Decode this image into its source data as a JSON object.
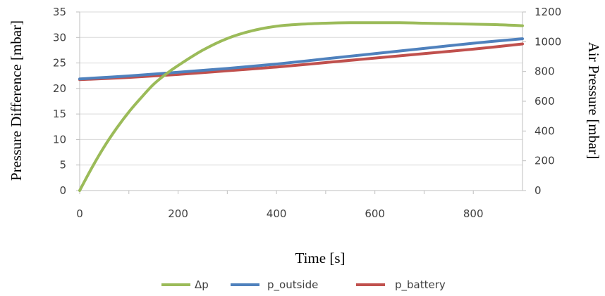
{
  "chart_data": {
    "type": "line",
    "xlabel": "Time [s]",
    "ylabel_left": "Pressure Difference [mbar]",
    "ylabel_right": "Air Pressure [mbar]",
    "xlim": [
      0,
      900
    ],
    "ylim_left": [
      0,
      35
    ],
    "ylim_right": [
      0,
      1200
    ],
    "x_ticks": [
      "0",
      "200",
      "400",
      "600",
      "800"
    ],
    "y_left_ticks": [
      "0",
      "5",
      "10",
      "15",
      "20",
      "25",
      "30",
      "35"
    ],
    "y_right_ticks": [
      "0",
      "200",
      "400",
      "600",
      "800",
      "1000",
      "1200"
    ],
    "grid": "horizontal",
    "legend": "bottom",
    "series": [
      {
        "name": "Δp",
        "axis": "left",
        "color": "#9bbb59",
        "x": [
          0,
          25,
          50,
          75,
          100,
          125,
          150,
          175,
          200,
          250,
          300,
          350,
          400,
          450,
          500,
          550,
          600,
          650,
          700,
          750,
          800,
          850,
          900
        ],
        "y": [
          0,
          4.5,
          8.6,
          12.2,
          15.4,
          18.2,
          20.8,
          22.8,
          24.5,
          27.5,
          29.8,
          31.3,
          32.2,
          32.6,
          32.8,
          32.9,
          32.9,
          32.9,
          32.8,
          32.7,
          32.6,
          32.5,
          32.3
        ]
      },
      {
        "name": "p_outside",
        "axis": "right",
        "color": "#4f81bd",
        "x": [
          0,
          100,
          200,
          300,
          400,
          500,
          600,
          700,
          800,
          900
        ],
        "y": [
          750,
          770,
          795,
          820,
          850,
          885,
          920,
          955,
          990,
          1020
        ]
      },
      {
        "name": "p_battery",
        "axis": "right",
        "color": "#c0504d",
        "x": [
          0,
          100,
          200,
          300,
          400,
          500,
          600,
          700,
          800,
          900
        ],
        "y": [
          745,
          760,
          780,
          805,
          830,
          860,
          890,
          920,
          950,
          985
        ]
      }
    ]
  }
}
